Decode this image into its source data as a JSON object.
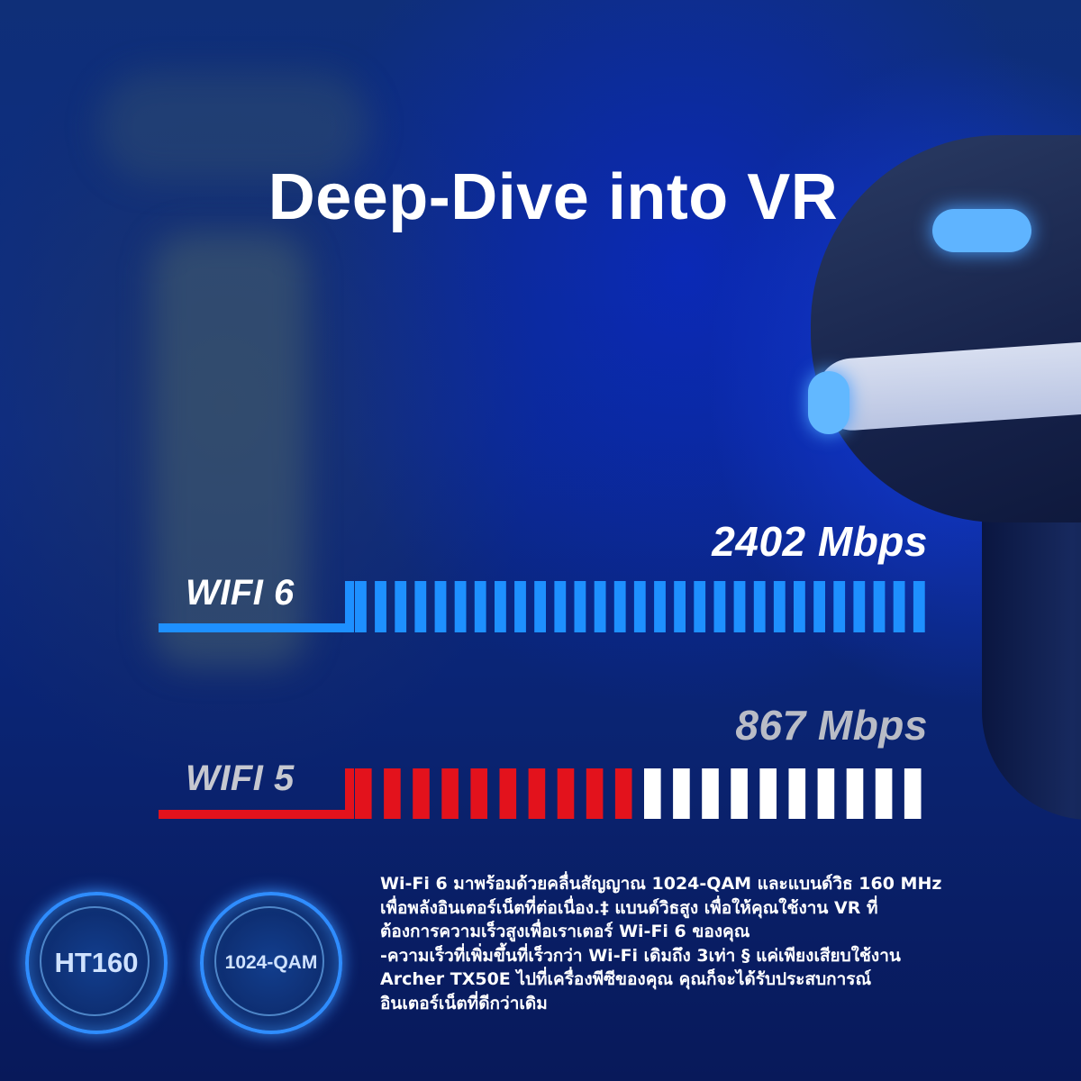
{
  "headline": "Deep-Dive into VR",
  "comparison": {
    "wifi6": {
      "label": "WIFI 6",
      "speed": "2402 Mbps",
      "total_segments": 29,
      "filled_segments": 29,
      "fill_color": "#1e90ff"
    },
    "wifi5": {
      "label": "WIFI 5",
      "speed": "867 Mbps",
      "total_segments": 20,
      "filled_segments": 10,
      "fill_color": "#e3121c",
      "empty_color": "#ffffff"
    }
  },
  "badges": [
    {
      "text": "HT160",
      "icon": "ht160-badge"
    },
    {
      "text": "1024-QAM",
      "icon": "qam-badge"
    }
  ],
  "description": [
    "Wi-Fi 6 มาพร้อมด้วยคลื่นสัญญาณ 1024-QAM และแบนด์วิธ 160 MHz",
    "เพื่อพลังอินเตอร์เน็ตที่ต่อเนื่อง.‡ แบนด์วิธสูง เพื่อให้คุณใช้งาน VR ที่",
    "ต้องการความเร็วสูงเพื่อเราเตอร์ Wi-Fi 6 ของคุณ",
    "-ความเร็วที่เพิ่มขึ้นที่เร็วกว่า Wi-Fi เดิมถึง 3เท่า § แค่เพียงเสียบใช้งาน",
    "Archer TX50E ไปที่เครื่องพีซีของคุณ คุณก็จะได้รับประสบการณ์",
    "อินเตอร์เน็ตที่ดีกว่าเดิม"
  ]
}
